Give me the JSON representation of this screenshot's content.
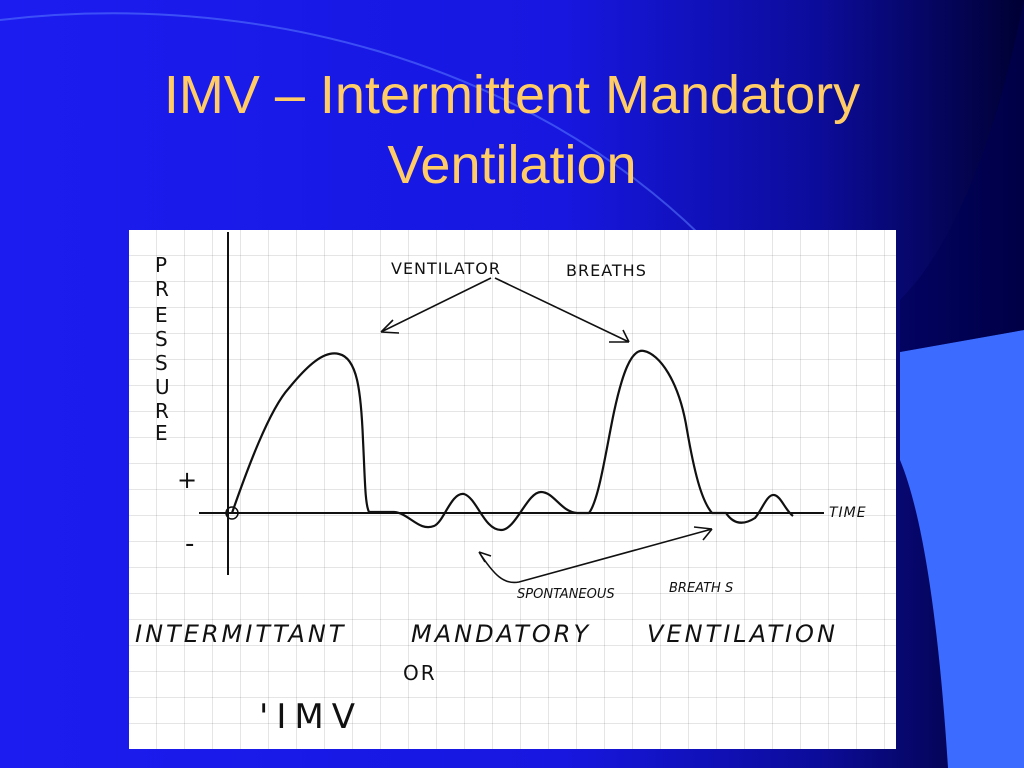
{
  "slide": {
    "title_line1": "IMV – Intermittent Mandatory",
    "title_line2": "Ventilation",
    "colors": {
      "background": "#1c1cf0",
      "title": "#ffcc66",
      "accent_shape": "#3b6cff",
      "dark_edge": "#000033"
    }
  },
  "diagram": {
    "y_axis_letters": [
      "P",
      "R",
      "E",
      "S",
      "S",
      "U",
      "R",
      "E"
    ],
    "plus_sign": "+",
    "minus_sign": "-",
    "x_axis_label": "TIME",
    "top_annotation_left": "VENTILATOR",
    "top_annotation_right": "BREATHS",
    "bottom_annotation_left": "SPONTANEOUS",
    "bottom_annotation_right": "BREATH S",
    "caption_1": "INTERMITTANT",
    "caption_2": "MANDATORY",
    "caption_3": "VENTILATION",
    "caption_or": "OR",
    "caption_abbrev": "'IMV"
  }
}
